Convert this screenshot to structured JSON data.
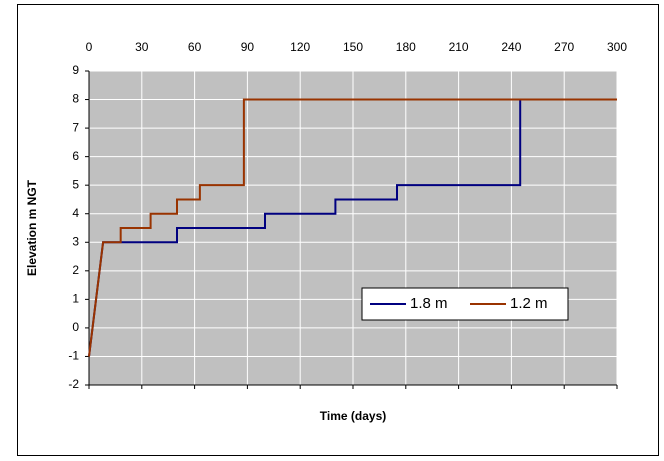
{
  "chart_data": {
    "type": "line",
    "x_label": "Time (days)",
    "y_label": "Elevation m NGT",
    "xlim": [
      0,
      300
    ],
    "xticks": [
      0,
      30,
      60,
      90,
      120,
      150,
      180,
      210,
      240,
      270,
      300
    ],
    "ylim": [
      -2,
      9
    ],
    "yticks": [
      -2,
      -1,
      0,
      1,
      2,
      3,
      4,
      5,
      6,
      7,
      8,
      9
    ],
    "grid": true,
    "legend": "lower right",
    "series": [
      {
        "name": "1.8 m",
        "color": "#000080",
        "x": [
          0,
          8,
          50,
          50,
          100,
          100,
          140,
          140,
          175,
          175,
          245,
          245,
          300
        ],
        "values": [
          -1,
          3,
          3,
          3.5,
          3.5,
          4,
          4,
          4.5,
          4.5,
          5,
          5,
          8,
          8
        ]
      },
      {
        "name": "1.2 m",
        "color": "#993300",
        "x": [
          0,
          8,
          18,
          18,
          35,
          35,
          50,
          50,
          63,
          63,
          88,
          88,
          300
        ],
        "values": [
          -1,
          3,
          3,
          3.5,
          3.5,
          4,
          4,
          4.5,
          4.5,
          5,
          5,
          8,
          8
        ]
      }
    ]
  }
}
